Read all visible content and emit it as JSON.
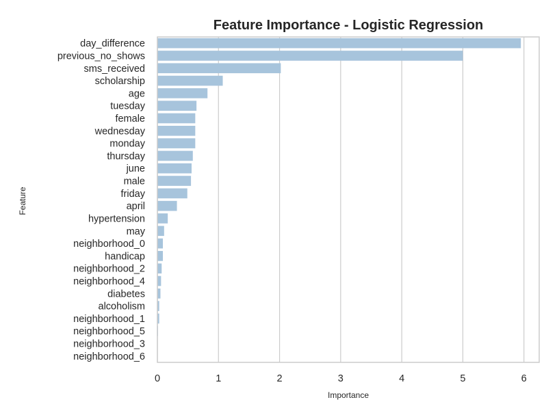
{
  "chart_data": {
    "type": "bar",
    "orientation": "horizontal",
    "title": "Feature Importance - Logistic Regression",
    "xlabel": "Importance",
    "ylabel": "Feature",
    "xlim": [
      0,
      6.25
    ],
    "xticks": [
      0,
      1,
      2,
      3,
      4,
      5,
      6
    ],
    "grid": "vertical",
    "bar_color": "#a7c4dc",
    "categories": [
      "day_difference",
      "previous_no_shows",
      "sms_received",
      "scholarship",
      "age",
      "tuesday",
      "female",
      "wednesday",
      "monday",
      "thursday",
      "june",
      "male",
      "friday",
      "april",
      "hypertension",
      "may",
      "neighborhood_0",
      "handicap",
      "neighborhood_2",
      "neighborhood_4",
      "diabetes",
      "alcoholism",
      "neighborhood_1",
      "neighborhood_5",
      "neighborhood_3",
      "neighborhood_6"
    ],
    "values": [
      5.95,
      5.0,
      2.02,
      1.07,
      0.82,
      0.64,
      0.62,
      0.62,
      0.62,
      0.58,
      0.56,
      0.55,
      0.49,
      0.32,
      0.17,
      0.11,
      0.09,
      0.09,
      0.07,
      0.06,
      0.05,
      0.03,
      0.03,
      0.01,
      0.005,
      0.003
    ]
  }
}
